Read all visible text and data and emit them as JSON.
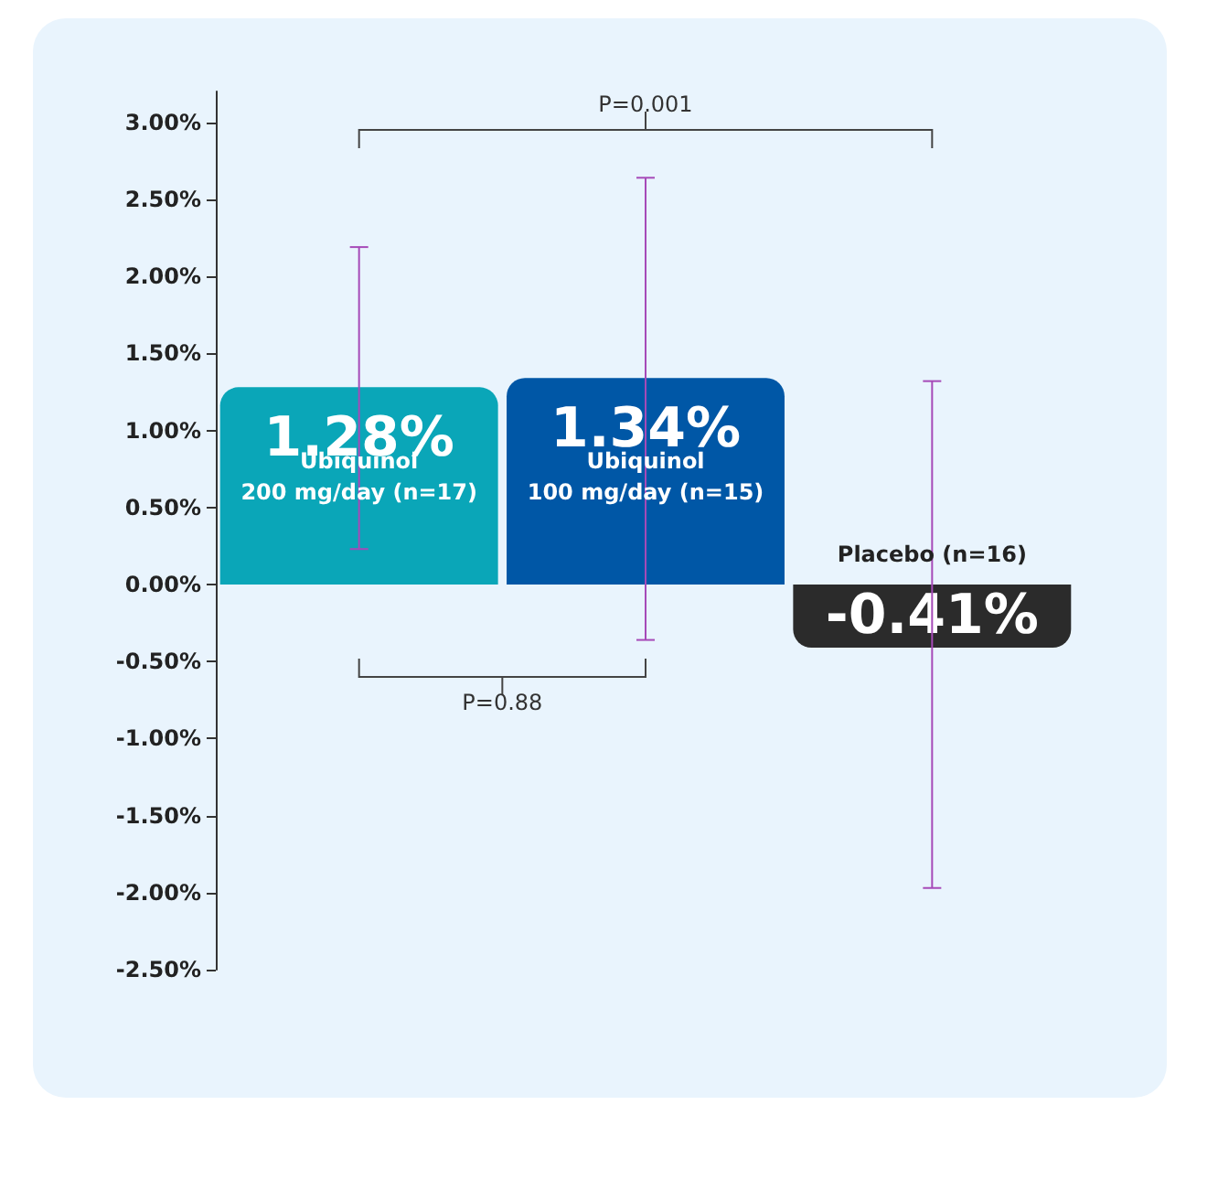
{
  "chart_data": {
    "type": "bar",
    "categories": [
      "Ubiquinol\n200 mg/day (n=17)",
      "Ubiquinol\n100 mg/day (n=15)",
      "Placebo (n=16)"
    ],
    "values": [
      1.28,
      1.34,
      -0.41
    ],
    "value_labels": [
      "1.28%",
      "1.34%",
      "-0.41%"
    ],
    "colors": [
      "#0aa6b8",
      "#0057a6",
      "#2b2b2b"
    ],
    "errors": [
      [
        0.23,
        2.19
      ],
      [
        -0.36,
        2.64
      ],
      [
        -1.97,
        1.32
      ]
    ],
    "ylim": [
      -2.5,
      3.2
    ],
    "yticks": [
      {
        "value": -2.5,
        "label": "-2.50%"
      },
      {
        "value": -2,
        "label": "-2.00%"
      },
      {
        "value": -1.5,
        "label": "-1.50%"
      },
      {
        "value": -1,
        "label": "-1.00%"
      },
      {
        "value": -0.5,
        "label": "-0.50%"
      },
      {
        "value": 0,
        "label": "0.00%"
      },
      {
        "value": 0.5,
        "label": "0.50%"
      },
      {
        "value": 1,
        "label": "1.00%"
      },
      {
        "value": 1.5,
        "label": "1.50%"
      },
      {
        "value": 2,
        "label": "2.00%"
      },
      {
        "value": 2.5,
        "label": "2.50%"
      },
      {
        "value": 3,
        "label": "3.00%"
      }
    ],
    "annotations": [
      "P=0.001",
      "P=0.88"
    ],
    "grid": false
  }
}
